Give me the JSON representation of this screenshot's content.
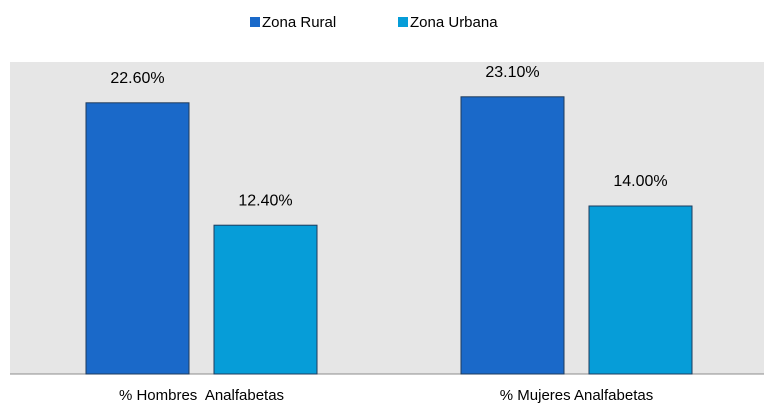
{
  "chart_data": {
    "type": "bar",
    "categories": [
      "% Hombres  Analfabetas",
      "% Mujeres Analfabetas"
    ],
    "series": [
      {
        "name": "Zona Rural",
        "color": "#1a69c9",
        "values": [
          22.6,
          23.1
        ],
        "value_labels": [
          "22.60%",
          "23.10%"
        ]
      },
      {
        "name": "Zona Urbana",
        "color": "#069dd8",
        "values": [
          12.4,
          14.0
        ],
        "value_labels": [
          "12.40%",
          "14.00%"
        ]
      }
    ],
    "ylim": [
      0,
      26
    ],
    "legend": "top"
  }
}
